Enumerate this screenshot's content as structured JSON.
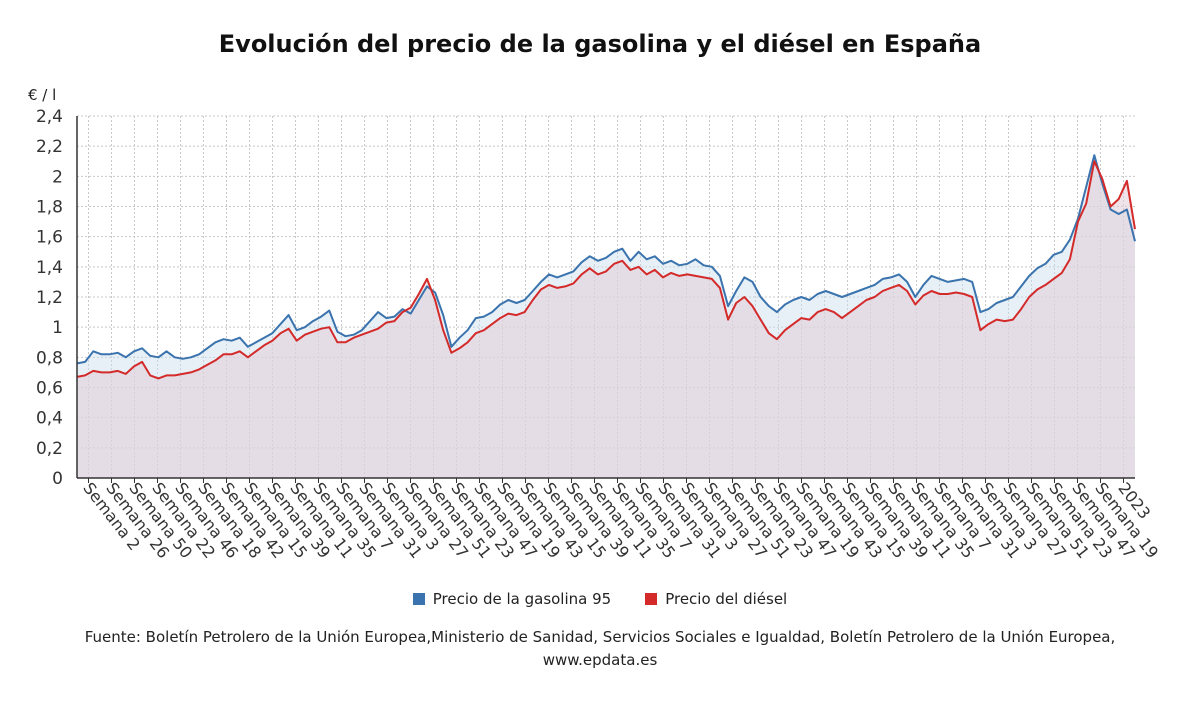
{
  "title": "Evolución del precio de la gasolina y el diésel en España",
  "unit": "€ / l",
  "legend": [
    {
      "label": "Precio de la gasolina 95",
      "color": "#3a73ad"
    },
    {
      "label": "Precio del diésel",
      "color": "#d42a2a"
    }
  ],
  "source_prefix": "Fuente: Boletín Petrolero de la Unión Europea,Ministerio de Sanidad, Servicios Sociales e Igualdad, Boletín Petrolero de la Unión Europea,",
  "source_site": "www.epdata.es",
  "chart_data": {
    "type": "area",
    "ylabel": "€ / l",
    "ylim": [
      0,
      2.4
    ],
    "yticks": [
      "0",
      "0,2",
      "0,4",
      "0,6",
      "0,8",
      "1",
      "1,2",
      "1,4",
      "1,6",
      "1,8",
      "2",
      "2,2",
      "2,4"
    ],
    "ytick_values": [
      0,
      0.2,
      0.4,
      0.6,
      0.8,
      1.0,
      1.2,
      1.4,
      1.6,
      1.8,
      2.0,
      2.2,
      2.4
    ],
    "xtick_labels": [
      "Semana 2",
      "Semana 26",
      "Semana 50",
      "Semana 22",
      "Semana 46",
      "Semana 18",
      "Semana 42",
      "Semana 15",
      "Semana 39",
      "Semana 11",
      "Semana 35",
      "Semana 7",
      "Semana 31",
      "Semana 3",
      "Semana 27",
      "Semana 51",
      "Semana 23",
      "Semana 47",
      "Semana 19",
      "Semana 43",
      "Semana 15",
      "Semana 39",
      "Semana 11",
      "Semana 35",
      "Semana 7",
      "Semana 31",
      "Semana 3",
      "Semana 27",
      "Semana 51",
      "Semana 23",
      "Semana 47",
      "Semana 19",
      "Semana 43",
      "Semana 15",
      "Semana 39",
      "Semana 11",
      "Semana 35",
      "Semana 7",
      "Semana 31",
      "Semana 3",
      "Semana 27",
      "Semana 51",
      "Semana 23",
      "Semana 47",
      "Semana 19",
      "2023"
    ],
    "grid": true,
    "legend_position": "bottom",
    "series": [
      {
        "name": "Precio de la gasolina 95",
        "color": "#3a73ad",
        "values": [
          0.76,
          0.77,
          0.84,
          0.82,
          0.82,
          0.83,
          0.8,
          0.84,
          0.86,
          0.81,
          0.8,
          0.84,
          0.8,
          0.79,
          0.8,
          0.82,
          0.86,
          0.9,
          0.92,
          0.91,
          0.93,
          0.87,
          0.9,
          0.93,
          0.96,
          1.02,
          1.08,
          0.98,
          1.0,
          1.04,
          1.07,
          1.11,
          0.97,
          0.94,
          0.95,
          0.98,
          1.04,
          1.1,
          1.06,
          1.07,
          1.12,
          1.09,
          1.18,
          1.27,
          1.23,
          1.08,
          0.87,
          0.93,
          0.98,
          1.06,
          1.07,
          1.1,
          1.15,
          1.18,
          1.16,
          1.18,
          1.24,
          1.3,
          1.35,
          1.33,
          1.35,
          1.37,
          1.43,
          1.47,
          1.44,
          1.46,
          1.5,
          1.52,
          1.44,
          1.5,
          1.45,
          1.47,
          1.42,
          1.44,
          1.41,
          1.42,
          1.45,
          1.41,
          1.4,
          1.34,
          1.14,
          1.24,
          1.33,
          1.3,
          1.2,
          1.14,
          1.1,
          1.15,
          1.18,
          1.2,
          1.18,
          1.22,
          1.24,
          1.22,
          1.2,
          1.22,
          1.24,
          1.26,
          1.28,
          1.32,
          1.33,
          1.35,
          1.3,
          1.2,
          1.28,
          1.34,
          1.32,
          1.3,
          1.31,
          1.32,
          1.3,
          1.1,
          1.12,
          1.16,
          1.18,
          1.2,
          1.27,
          1.34,
          1.39,
          1.42,
          1.48,
          1.5,
          1.58,
          1.72,
          1.93,
          2.14,
          1.95,
          1.78,
          1.75,
          1.78,
          1.57
        ]
      },
      {
        "name": "Precio del diésel",
        "color": "#d42a2a",
        "values": [
          0.67,
          0.68,
          0.71,
          0.7,
          0.7,
          0.71,
          0.69,
          0.74,
          0.77,
          0.68,
          0.66,
          0.68,
          0.68,
          0.69,
          0.7,
          0.72,
          0.75,
          0.78,
          0.82,
          0.82,
          0.84,
          0.8,
          0.84,
          0.88,
          0.91,
          0.96,
          0.99,
          0.91,
          0.95,
          0.97,
          0.99,
          1.0,
          0.9,
          0.9,
          0.93,
          0.95,
          0.97,
          0.99,
          1.03,
          1.04,
          1.1,
          1.13,
          1.22,
          1.32,
          1.18,
          0.98,
          0.83,
          0.86,
          0.9,
          0.96,
          0.98,
          1.02,
          1.06,
          1.09,
          1.08,
          1.1,
          1.18,
          1.25,
          1.28,
          1.26,
          1.27,
          1.29,
          1.35,
          1.39,
          1.35,
          1.37,
          1.42,
          1.44,
          1.38,
          1.4,
          1.35,
          1.38,
          1.33,
          1.36,
          1.34,
          1.35,
          1.34,
          1.33,
          1.32,
          1.26,
          1.05,
          1.16,
          1.2,
          1.14,
          1.05,
          0.96,
          0.92,
          0.98,
          1.02,
          1.06,
          1.05,
          1.1,
          1.12,
          1.1,
          1.06,
          1.1,
          1.14,
          1.18,
          1.2,
          1.24,
          1.26,
          1.28,
          1.24,
          1.15,
          1.21,
          1.24,
          1.22,
          1.22,
          1.23,
          1.22,
          1.2,
          0.98,
          1.02,
          1.05,
          1.04,
          1.05,
          1.12,
          1.2,
          1.25,
          1.28,
          1.32,
          1.36,
          1.45,
          1.7,
          1.82,
          2.1,
          1.98,
          1.8,
          1.85,
          1.97,
          1.65
        ]
      }
    ]
  }
}
